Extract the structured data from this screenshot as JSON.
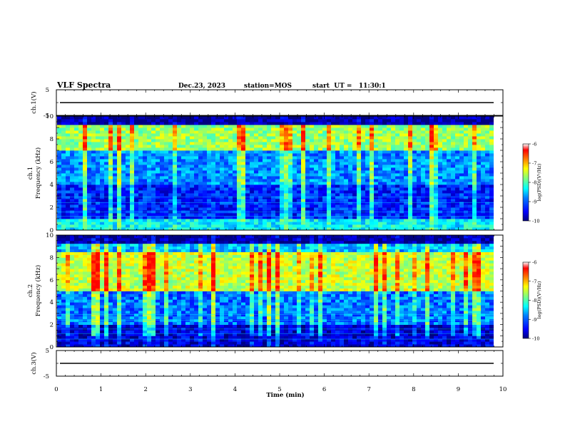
{
  "header": {
    "title": "VLF Spectra",
    "date": "Dec.23, 2023",
    "station": "station=MOS",
    "start": "start  UT =   11:30:1"
  },
  "colors": {
    "cmap": [
      "#00007f",
      "#0000ff",
      "#007fff",
      "#00ffff",
      "#7fff7f",
      "#ffff00",
      "#ff7f00",
      "#ff0000",
      "#ffffff"
    ]
  },
  "chart_data": [
    {
      "type": "line",
      "ylabel": "ch.1(V)",
      "ylim": [
        -5,
        5
      ],
      "yticks": [
        "5",
        "-5"
      ],
      "x": [
        0,
        10
      ],
      "values": [
        0,
        0
      ]
    },
    {
      "type": "heatmap",
      "ylabel_line1": "ch.1",
      "ylabel_line2": "Frequency (kHz)",
      "ylim": [
        0,
        10
      ],
      "yticks": [
        "0",
        "2",
        "4",
        "6",
        "8",
        "10"
      ],
      "xlim": [
        0,
        10
      ],
      "colorbar": {
        "label": "log(PSD)(V²/Hz)",
        "range": [
          -10,
          -6
        ],
        "ticks": [
          "-6",
          "-7",
          "-8",
          "-9",
          "-10"
        ]
      },
      "bands": [
        {
          "from": 0,
          "to": 1,
          "level": -8.3
        },
        {
          "from": 1,
          "to": 4,
          "level": -9.3
        },
        {
          "from": 4,
          "to": 7,
          "level": -8.8
        },
        {
          "from": 7,
          "to": 9.2,
          "level": -7.6
        },
        {
          "from": 9.2,
          "to": 10,
          "level": -9.9
        }
      ]
    },
    {
      "type": "heatmap",
      "ylabel_line1": "ch.2",
      "ylabel_line2": "Frequency (kHz)",
      "ylim": [
        0,
        10
      ],
      "yticks": [
        "0",
        "2",
        "4",
        "6",
        "8",
        "10"
      ],
      "xlim": [
        0,
        10
      ],
      "colorbar": {
        "label": "log(PSD)(V²/Hz)",
        "range": [
          -10,
          -6
        ],
        "ticks": [
          "-6",
          "-7",
          "-8",
          "-9",
          "-10"
        ]
      },
      "bands": [
        {
          "from": 0,
          "to": 2,
          "level": -9.6
        },
        {
          "from": 2,
          "to": 5,
          "level": -8.9
        },
        {
          "from": 5,
          "to": 8.5,
          "level": -7.4
        },
        {
          "from": 8.5,
          "to": 9.3,
          "level": -8.6
        },
        {
          "from": 9.3,
          "to": 10,
          "level": -9.9
        }
      ]
    },
    {
      "type": "line",
      "ylabel": "ch.3(V)",
      "ylim": [
        -5,
        5
      ],
      "yticks": [
        "5",
        "-5"
      ],
      "x": [
        0,
        10
      ],
      "values": [
        0,
        0
      ],
      "xlabel": "Time (min)",
      "xticks": [
        "0",
        "1",
        "2",
        "3",
        "4",
        "5",
        "6",
        "7",
        "8",
        "9",
        "10"
      ]
    }
  ]
}
